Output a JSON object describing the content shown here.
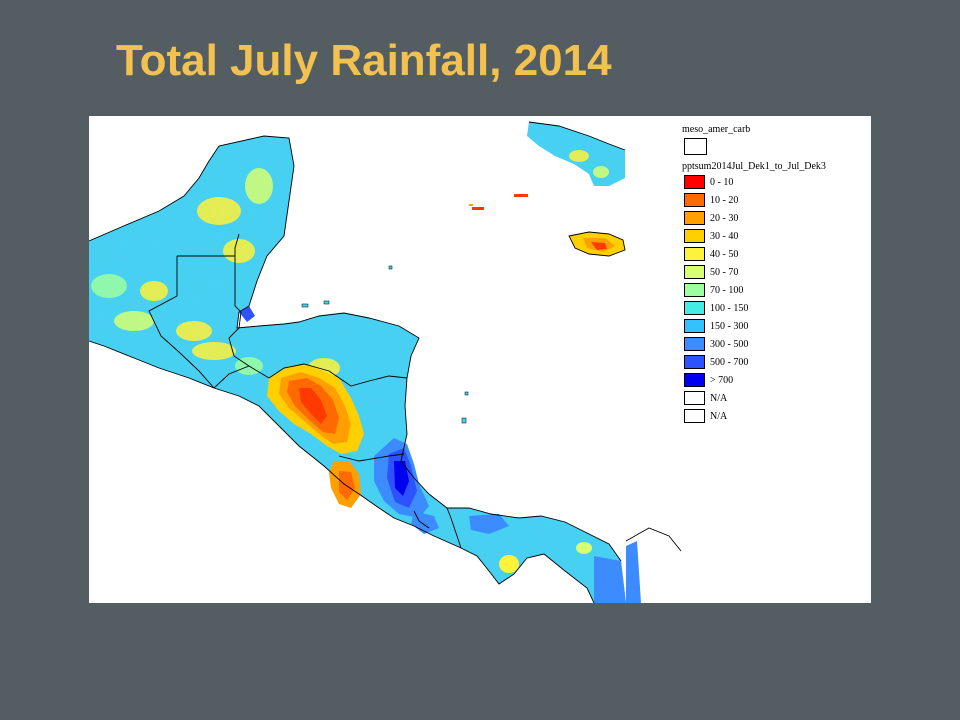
{
  "slide": {
    "title": "Total July Rainfall, 2014"
  },
  "legend": {
    "layer_title": "meso_amer_carb",
    "series_title": "pptsum2014Jul_Dek1_to_Jul_Dek3",
    "classes": [
      {
        "label": "0 - 10",
        "color": "#ff0000"
      },
      {
        "label": "10 - 20",
        "color": "#ff6a00"
      },
      {
        "label": "20 - 30",
        "color": "#ff9f00"
      },
      {
        "label": "30 - 40",
        "color": "#ffd000"
      },
      {
        "label": "40 - 50",
        "color": "#fff23a"
      },
      {
        "label": "50 - 70",
        "color": "#d6ff73"
      },
      {
        "label": "70 - 100",
        "color": "#9cffa0"
      },
      {
        "label": "100 - 150",
        "color": "#45ece6"
      },
      {
        "label": "150 - 300",
        "color": "#34c2ff"
      },
      {
        "label": "300 - 500",
        "color": "#3c8cff"
      },
      {
        "label": "500 - 700",
        "color": "#2d52ff"
      },
      {
        "label": "> 700",
        "color": "#0000f0"
      },
      {
        "label": "N/A",
        "color": "#ffffff"
      },
      {
        "label": "N/A",
        "color": "#ffffff"
      }
    ]
  }
}
